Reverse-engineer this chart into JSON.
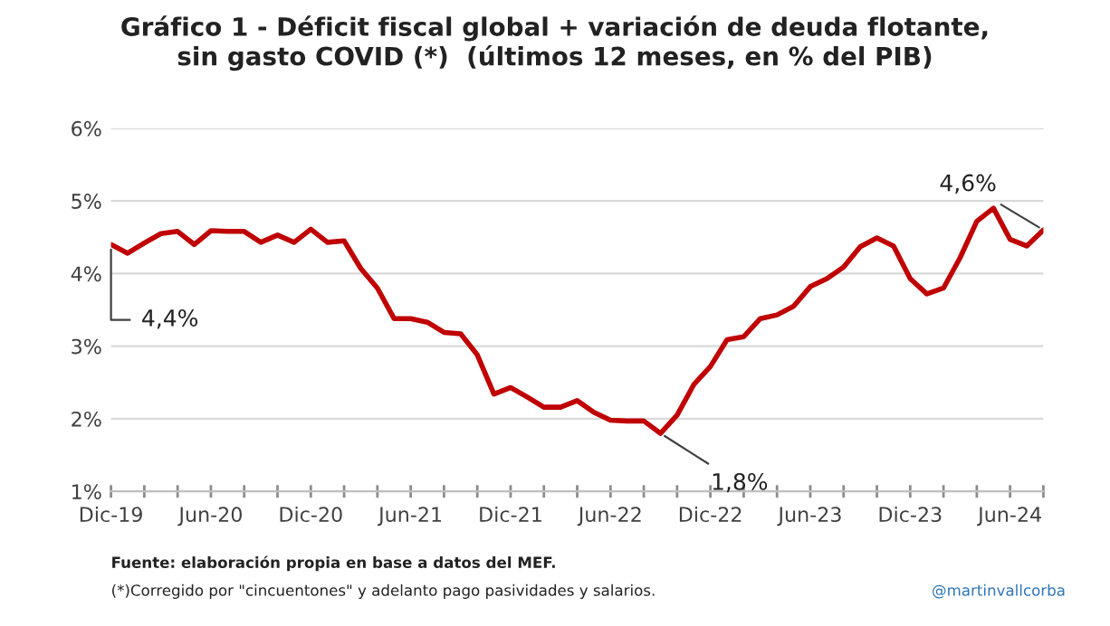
{
  "chart_data": {
    "type": "line",
    "title": "Gráfico 1 - Déficit fiscal global + variación de deuda flotante,\nsin gasto COVID (*)  (últimos 12 meses, en % del PIB)",
    "x": [
      "2019-12",
      "2020-01",
      "2020-02",
      "2020-03",
      "2020-04",
      "2020-05",
      "2020-06",
      "2020-07",
      "2020-08",
      "2020-09",
      "2020-10",
      "2020-11",
      "2020-12",
      "2021-01",
      "2021-02",
      "2021-03",
      "2021-04",
      "2021-05",
      "2021-06",
      "2021-07",
      "2021-08",
      "2021-09",
      "2021-10",
      "2021-11",
      "2021-12",
      "2022-01",
      "2022-02",
      "2022-03",
      "2022-04",
      "2022-05",
      "2022-06",
      "2022-07",
      "2022-08",
      "2022-09",
      "2022-10",
      "2022-11",
      "2022-12",
      "2023-01",
      "2023-02",
      "2023-03",
      "2023-04",
      "2023-05",
      "2023-06",
      "2023-07",
      "2023-08",
      "2023-09",
      "2023-10",
      "2023-11",
      "2023-12",
      "2024-01",
      "2024-02",
      "2024-03",
      "2024-04",
      "2024-05",
      "2024-06",
      "2024-07",
      "2024-08"
    ],
    "series": [
      {
        "color": "#c00000",
        "values": [
          4.4,
          4.28,
          4.42,
          4.55,
          4.58,
          4.4,
          4.59,
          4.58,
          4.58,
          4.43,
          4.53,
          4.43,
          4.61,
          4.43,
          4.45,
          4.07,
          3.8,
          3.38,
          3.38,
          3.33,
          3.19,
          3.17,
          2.88,
          2.34,
          2.43,
          2.3,
          2.16,
          2.16,
          2.25,
          2.09,
          1.98,
          1.97,
          1.97,
          1.8,
          2.05,
          2.47,
          2.72,
          3.09,
          3.13,
          3.38,
          3.43,
          3.55,
          3.82,
          3.93,
          4.09,
          4.37,
          4.49,
          4.38,
          3.93,
          3.72,
          3.8,
          4.22,
          4.72,
          4.9,
          4.47,
          4.38,
          4.6
        ]
      }
    ],
    "xlim": [
      "2019-12",
      "2024-08"
    ],
    "xticks": [
      {
        "value": "2019-12",
        "label": "Dic-19"
      },
      {
        "value": "2020-02",
        "label": null
      },
      {
        "value": "2020-04",
        "label": null
      },
      {
        "value": "2020-06",
        "label": "Jun-20"
      },
      {
        "value": "2020-08",
        "label": null
      },
      {
        "value": "2020-10",
        "label": null
      },
      {
        "value": "2020-12",
        "label": "Dic-20"
      },
      {
        "value": "2021-02",
        "label": null
      },
      {
        "value": "2021-04",
        "label": null
      },
      {
        "value": "2021-06",
        "label": "Jun-21"
      },
      {
        "value": "2021-08",
        "label": null
      },
      {
        "value": "2021-10",
        "label": null
      },
      {
        "value": "2021-12",
        "label": "Dic-21"
      },
      {
        "value": "2022-02",
        "label": null
      },
      {
        "value": "2022-04",
        "label": null
      },
      {
        "value": "2022-06",
        "label": "Jun-22"
      },
      {
        "value": "2022-08",
        "label": null
      },
      {
        "value": "2022-10",
        "label": null
      },
      {
        "value": "2022-12",
        "label": "Dic-22"
      },
      {
        "value": "2023-02",
        "label": null
      },
      {
        "value": "2023-04",
        "label": null
      },
      {
        "value": "2023-06",
        "label": "Jun-23"
      },
      {
        "value": "2023-08",
        "label": null
      },
      {
        "value": "2023-10",
        "label": null
      },
      {
        "value": "2023-12",
        "label": "Dic-23"
      },
      {
        "value": "2024-02",
        "label": null
      },
      {
        "value": "2024-04",
        "label": null
      },
      {
        "value": "2024-06",
        "label": "Jun-24"
      },
      {
        "value": "2024-08",
        "label": null
      }
    ],
    "ylim": [
      1,
      6
    ],
    "yticks": [
      {
        "value": 1,
        "label": "1%"
      },
      {
        "value": 2,
        "label": "2%"
      },
      {
        "value": 3,
        "label": "3%"
      },
      {
        "value": 4,
        "label": "4%"
      },
      {
        "value": 5,
        "label": "5%"
      },
      {
        "value": 6,
        "label": "6%"
      }
    ],
    "grid": "y",
    "line_style": "solid",
    "marker": "none",
    "annotations": [
      {
        "text": "4,4%",
        "x": "2019-12",
        "y": 4.4
      },
      {
        "text": "1,8%",
        "x": "2022-09",
        "y": 1.8
      },
      {
        "text": "4,6%",
        "x": "2024-08",
        "y": 4.6
      },
      "Fuente: elaboración propia en base a datos del MEF.",
      "(*)Corregido por \"cincuentones\" y adelanto pago pasividades y salarios.",
      "@martinvallcorba"
    ]
  }
}
